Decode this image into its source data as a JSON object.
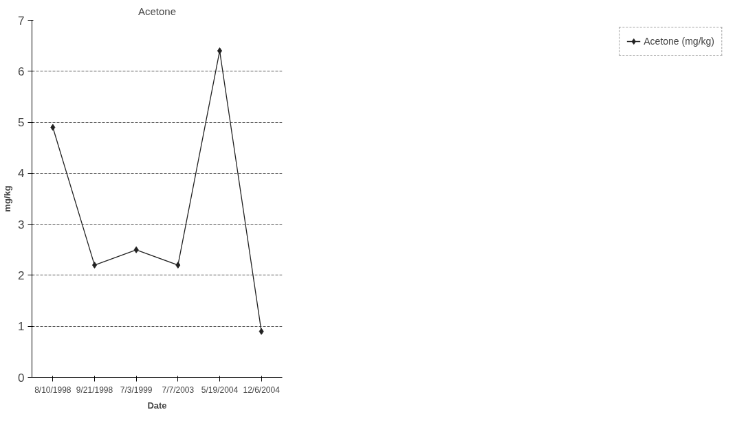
{
  "chart_data": {
    "type": "line",
    "title": "Acetone",
    "xlabel": "Date",
    "ylabel": "mg/kg",
    "categories": [
      "8/10/1998",
      "9/21/1998",
      "7/3/1999",
      "7/7/2003",
      "5/19/2004",
      "12/6/2004"
    ],
    "series": [
      {
        "name": "Acetone (mg/kg)",
        "color": "#222222",
        "values": [
          4.9,
          2.2,
          2.5,
          2.2,
          6.4,
          0.9
        ]
      }
    ],
    "ylim": [
      0,
      7
    ],
    "yticks": [
      0,
      1,
      2,
      3,
      4,
      5,
      6,
      7
    ],
    "grid": "y",
    "legend": "right",
    "marker": "diamond",
    "line_style": "solid"
  }
}
